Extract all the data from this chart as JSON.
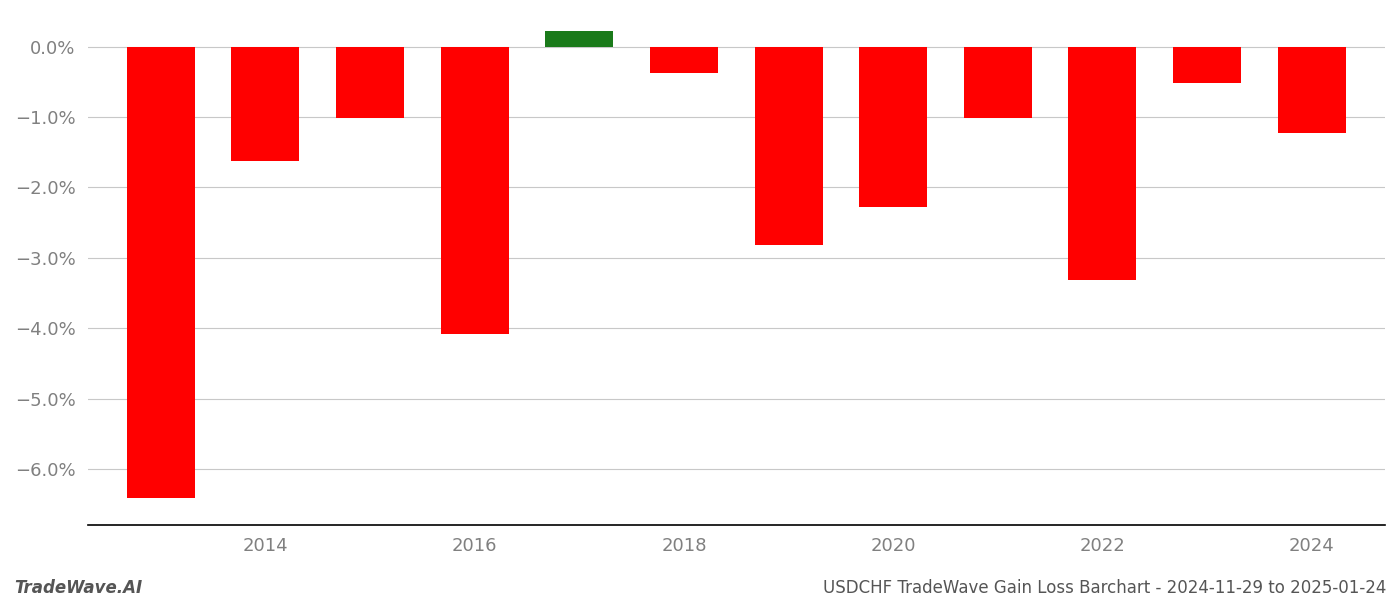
{
  "years": [
    2013,
    2014,
    2015,
    2016,
    2017,
    2018,
    2019,
    2020,
    2021,
    2022,
    2023,
    2024
  ],
  "values": [
    -6.42,
    -1.62,
    -1.02,
    -4.08,
    0.22,
    -0.38,
    -2.82,
    -2.28,
    -1.02,
    -3.32,
    -0.52,
    -1.22
  ],
  "colors": [
    "#ff0000",
    "#ff0000",
    "#ff0000",
    "#ff0000",
    "#1a7a1a",
    "#ff0000",
    "#ff0000",
    "#ff0000",
    "#ff0000",
    "#ff0000",
    "#ff0000",
    "#ff0000"
  ],
  "bar_width": 0.65,
  "ylim": [
    -6.8,
    0.45
  ],
  "yticks": [
    0.0,
    -1.0,
    -2.0,
    -3.0,
    -4.0,
    -5.0,
    -6.0
  ],
  "ytick_labels": [
    "0.0%",
    "−1.0%",
    "−2.0%",
    "−3.0%",
    "−4.0%",
    "−5.0%",
    "−6.0%"
  ],
  "xticks": [
    2014,
    2016,
    2018,
    2020,
    2022,
    2024
  ],
  "xlabel": "",
  "ylabel": "",
  "footer_left": "TradeWave.AI",
  "footer_right": "USDCHF TradeWave Gain Loss Barchart - 2024-11-29 to 2025-01-24",
  "background_color": "#ffffff",
  "grid_color": "#c8c8c8",
  "tick_color": "#808080",
  "spine_color": "#000000"
}
